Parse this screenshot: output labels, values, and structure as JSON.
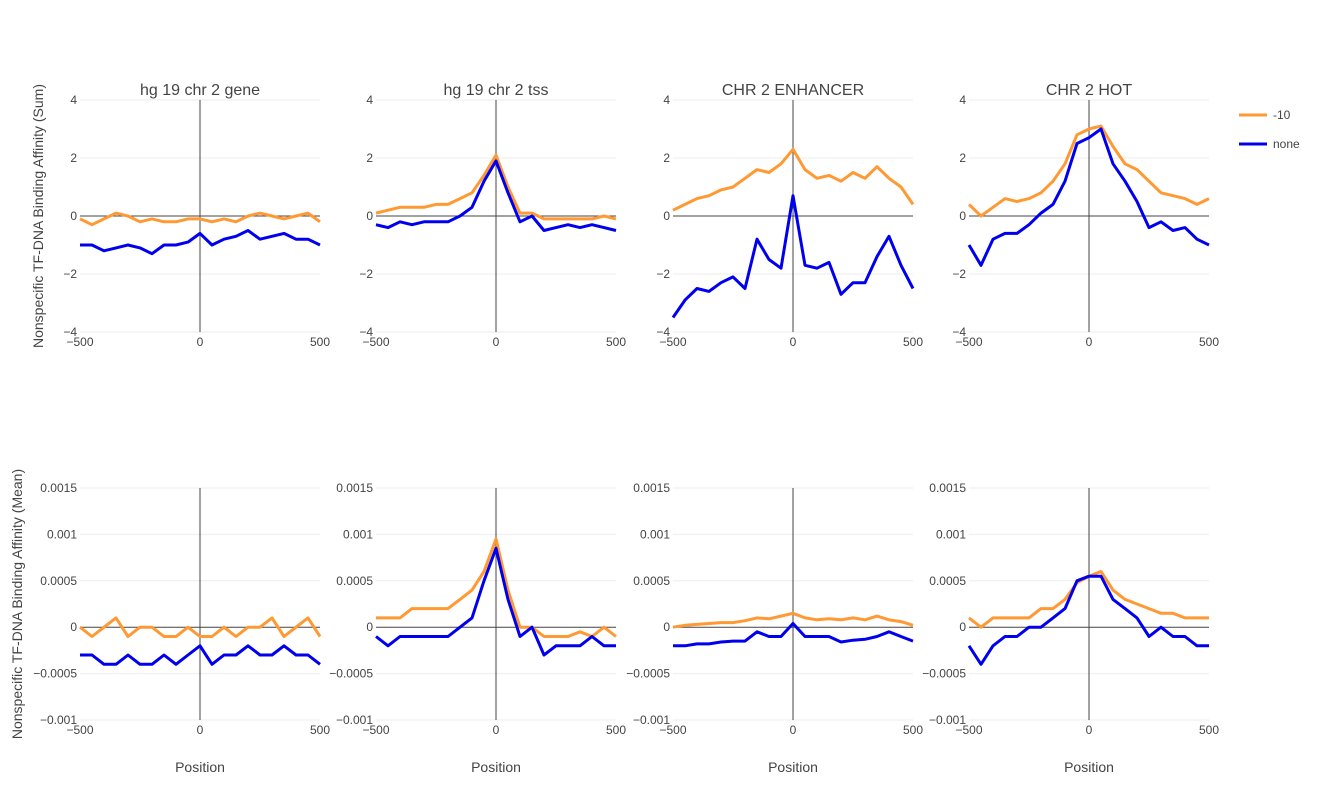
{
  "chart_data": {
    "type": "line",
    "legend": {
      "placement": "right",
      "entries": [
        {
          "name": "-10",
          "color": "#FF9933"
        },
        {
          "name": "none",
          "color": "#0000EE"
        }
      ]
    },
    "x_axis_title": "Position",
    "xlim": [
      -500,
      500
    ],
    "x_ticks": [
      -500,
      0,
      500
    ],
    "x_tick_labels": [
      "−500",
      "0",
      "500"
    ],
    "rows": [
      {
        "ylabel": "Nonspecific TF-DNA Binding Affinity (Sum)",
        "ylim": [
          -4,
          4
        ],
        "y_ticks": [
          -4,
          -2,
          0,
          2,
          4
        ],
        "y_tick_labels": [
          "−4",
          "−2",
          "0",
          "2",
          "4"
        ]
      },
      {
        "ylabel": "Nonspecific TF-DNA Binding Affinity (Mean)",
        "ylim": [
          -0.001,
          0.0015
        ],
        "y_ticks": [
          -0.001,
          -0.0005,
          0,
          0.0005,
          0.001,
          0.0015
        ],
        "y_tick_labels": [
          "−0.001",
          "−0.0005",
          "0",
          "0.0005",
          "0.001",
          "0.0015"
        ]
      }
    ],
    "columns": [
      "hg 19 chr 2 gene",
      "hg 19 chr 2 tss",
      "CHR 2 ENHANCER",
      "CHR 2 HOT"
    ],
    "x": [
      -500,
      -450,
      -400,
      -350,
      -300,
      -250,
      -200,
      -150,
      -100,
      -50,
      0,
      50,
      100,
      150,
      200,
      250,
      300,
      350,
      400,
      450,
      500
    ],
    "panels": [
      {
        "row": 0,
        "col": 0,
        "series": [
          {
            "name": "-10",
            "values": [
              -0.1,
              -0.3,
              -0.1,
              0.1,
              0.0,
              -0.2,
              -0.1,
              -0.2,
              -0.2,
              -0.1,
              -0.1,
              -0.2,
              -0.1,
              -0.2,
              0.0,
              0.1,
              0.0,
              -0.1,
              0.0,
              0.1,
              -0.2
            ]
          },
          {
            "name": "none",
            "values": [
              -1.0,
              -1.0,
              -1.2,
              -1.1,
              -1.0,
              -1.1,
              -1.3,
              -1.0,
              -1.0,
              -0.9,
              -0.6,
              -1.0,
              -0.8,
              -0.7,
              -0.5,
              -0.8,
              -0.7,
              -0.6,
              -0.8,
              -0.8,
              -1.0
            ]
          }
        ]
      },
      {
        "row": 0,
        "col": 1,
        "series": [
          {
            "name": "-10",
            "values": [
              0.1,
              0.2,
              0.3,
              0.3,
              0.3,
              0.4,
              0.4,
              0.6,
              0.8,
              1.4,
              2.1,
              1.0,
              0.1,
              0.1,
              -0.1,
              -0.1,
              -0.1,
              -0.1,
              -0.1,
              0.0,
              -0.1
            ]
          },
          {
            "name": "none",
            "values": [
              -0.3,
              -0.4,
              -0.2,
              -0.3,
              -0.2,
              -0.2,
              -0.2,
              0.0,
              0.3,
              1.2,
              1.9,
              0.8,
              -0.2,
              0.0,
              -0.5,
              -0.4,
              -0.3,
              -0.4,
              -0.3,
              -0.4,
              -0.5
            ]
          }
        ]
      },
      {
        "row": 0,
        "col": 2,
        "series": [
          {
            "name": "-10",
            "values": [
              0.2,
              0.4,
              0.6,
              0.7,
              0.9,
              1.0,
              1.3,
              1.6,
              1.5,
              1.8,
              2.3,
              1.6,
              1.3,
              1.4,
              1.2,
              1.5,
              1.3,
              1.7,
              1.3,
              1.0,
              0.4
            ]
          },
          {
            "name": "none",
            "values": [
              -3.5,
              -2.9,
              -2.5,
              -2.6,
              -2.3,
              -2.1,
              -2.5,
              -0.8,
              -1.5,
              -1.8,
              0.7,
              -1.7,
              -1.8,
              -1.6,
              -2.7,
              -2.3,
              -2.3,
              -1.4,
              -0.7,
              -1.7,
              -2.5
            ]
          }
        ]
      },
      {
        "row": 0,
        "col": 3,
        "series": [
          {
            "name": "-10",
            "values": [
              0.4,
              0.0,
              0.3,
              0.6,
              0.5,
              0.6,
              0.8,
              1.2,
              1.8,
              2.8,
              3.0,
              3.1,
              2.4,
              1.8,
              1.6,
              1.2,
              0.8,
              0.7,
              0.6,
              0.4,
              0.6
            ]
          },
          {
            "name": "none",
            "values": [
              -1.0,
              -1.7,
              -0.8,
              -0.6,
              -0.6,
              -0.3,
              0.1,
              0.4,
              1.2,
              2.5,
              2.7,
              3.0,
              1.8,
              1.2,
              0.5,
              -0.4,
              -0.2,
              -0.5,
              -0.4,
              -0.8,
              -1.0
            ]
          }
        ]
      },
      {
        "row": 1,
        "col": 0,
        "series": [
          {
            "name": "-10",
            "values": [
              0.0,
              -0.0001,
              0.0,
              0.0001,
              -0.0001,
              0.0,
              0.0,
              -0.0001,
              -0.0001,
              0.0,
              -0.0001,
              -0.0001,
              0.0,
              -0.0001,
              0.0,
              0.0,
              0.0001,
              -0.0001,
              0.0,
              0.0001,
              -0.0001
            ]
          },
          {
            "name": "none",
            "values": [
              -0.0003,
              -0.0003,
              -0.0004,
              -0.0004,
              -0.0003,
              -0.0004,
              -0.0004,
              -0.0003,
              -0.0004,
              -0.0003,
              -0.0002,
              -0.0004,
              -0.0003,
              -0.0003,
              -0.0002,
              -0.0003,
              -0.0003,
              -0.0002,
              -0.0003,
              -0.0003,
              -0.0004
            ]
          }
        ]
      },
      {
        "row": 1,
        "col": 1,
        "series": [
          {
            "name": "-10",
            "values": [
              0.0001,
              0.0001,
              0.0001,
              0.0002,
              0.0002,
              0.0002,
              0.0002,
              0.0003,
              0.0004,
              0.0006,
              0.00095,
              0.0004,
              0.0,
              0.0,
              -0.0001,
              -0.0001,
              -0.0001,
              -5e-05,
              -0.0001,
              0.0,
              -0.0001
            ]
          },
          {
            "name": "none",
            "values": [
              -0.0001,
              -0.0002,
              -0.0001,
              -0.0001,
              -0.0001,
              -0.0001,
              -0.0001,
              0.0,
              0.0001,
              0.0005,
              0.00085,
              0.0003,
              -0.0001,
              0.0,
              -0.0003,
              -0.0002,
              -0.0002,
              -0.0002,
              -0.0001,
              -0.0002,
              -0.0002
            ]
          }
        ]
      },
      {
        "row": 1,
        "col": 2,
        "series": [
          {
            "name": "-10",
            "values": [
              0.0,
              2e-05,
              3e-05,
              4e-05,
              5e-05,
              5e-05,
              7e-05,
              0.0001,
              9e-05,
              0.00012,
              0.00015,
              0.0001,
              8e-05,
              9e-05,
              8e-05,
              0.0001,
              8e-05,
              0.00012,
              8e-05,
              6e-05,
              2e-05
            ]
          },
          {
            "name": "none",
            "values": [
              -0.0002,
              -0.0002,
              -0.00018,
              -0.00018,
              -0.00016,
              -0.00015,
              -0.00015,
              -5e-05,
              -0.0001,
              -0.0001,
              4e-05,
              -0.0001,
              -0.0001,
              -0.0001,
              -0.00016,
              -0.00014,
              -0.00013,
              -0.0001,
              -5e-05,
              -0.0001,
              -0.00015
            ]
          }
        ]
      },
      {
        "row": 1,
        "col": 3,
        "series": [
          {
            "name": "-10",
            "values": [
              0.0001,
              0.0,
              0.0001,
              0.0001,
              0.0001,
              0.0001,
              0.0002,
              0.0002,
              0.0003,
              0.00048,
              0.00055,
              0.0006,
              0.0004,
              0.0003,
              0.00025,
              0.0002,
              0.00015,
              0.00015,
              0.0001,
              0.0001,
              0.0001
            ]
          },
          {
            "name": "none",
            "values": [
              -0.0002,
              -0.0004,
              -0.0002,
              -0.0001,
              -0.0001,
              0.0,
              0.0,
              0.0001,
              0.0002,
              0.0005,
              0.00055,
              0.00055,
              0.0003,
              0.0002,
              0.0001,
              -0.0001,
              0.0,
              -0.0001,
              -0.0001,
              -0.0002,
              -0.0002
            ]
          }
        ]
      }
    ]
  }
}
